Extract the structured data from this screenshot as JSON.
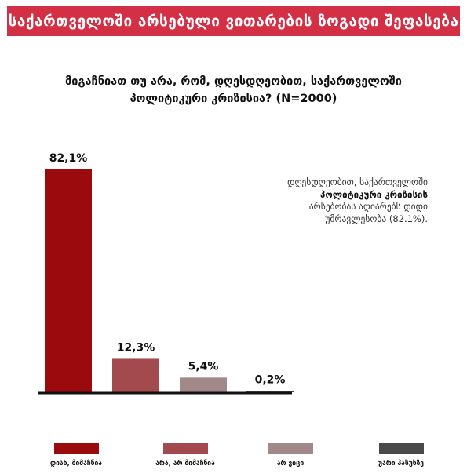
{
  "header": {
    "title": "საქართველოში არსებული ვითარების ზოგადი შეფასება"
  },
  "question": {
    "line1": "მიგაჩნიათ თუ არა, რომ, დღესდღეობით, საქართველოში",
    "line2": "პოლიტიკური კრიზისია? (N=2000)"
  },
  "note": {
    "part1": "დღესდღეობით, საქართველოში",
    "bold": "პოლიტიკური კრიზისის",
    "part2": "არსებობას აღიარებს დიდი უმრავლესობა (82.1%)."
  },
  "chart_data": {
    "type": "bar",
    "categories": [
      "დიახ, მიმაჩნია",
      "არა, არ მიმაჩნია",
      "არ ვიცი",
      "უარი პასუხზე"
    ],
    "values": [
      82.1,
      12.3,
      5.4,
      0.2
    ],
    "value_labels": [
      "82,1%",
      "12,3%",
      "5,4%",
      "0,2%"
    ],
    "colors": [
      "#9b0a0d",
      "#a24a4d",
      "#a3888a",
      "#4a4a4a"
    ],
    "ylim": [
      0,
      100
    ],
    "grid": false,
    "legend_placement": "bottom"
  }
}
